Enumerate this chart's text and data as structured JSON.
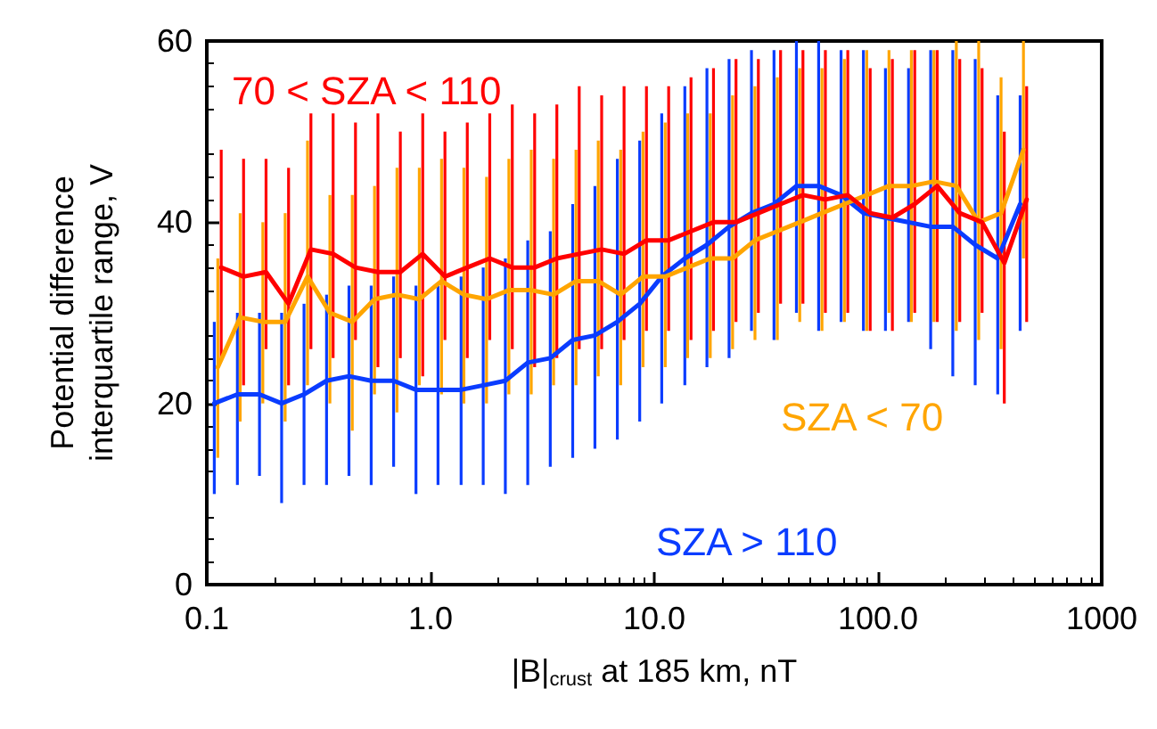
{
  "chart_data": {
    "type": "line",
    "xlabel": "|B|$_{crust}$ at 185 km, nT",
    "ylabel": "Potential difference\ninterquartile range, V",
    "log": "x",
    "xlim": [
      0.1,
      1000
    ],
    "xticks": [
      0.1,
      {
        "value": 1,
        "label": "1.0"
      },
      {
        "value": 10,
        "label": "10.0"
      },
      {
        "value": 100,
        "label": "100.0"
      },
      1000
    ],
    "ylim": [
      0,
      60
    ],
    "yticks": [
      0,
      20,
      40,
      60
    ],
    "grid": false,
    "legend": false,
    "marker": "none",
    "line_style": "solid",
    "series": [
      {
        "name": "SZA > 110",
        "color": "#0a3cff",
        "x": [
          0.108,
          0.137,
          0.172,
          0.216,
          0.272,
          0.343,
          0.432,
          0.543,
          0.684,
          0.861,
          1.08,
          1.37,
          1.72,
          2.16,
          2.72,
          3.43,
          4.32,
          5.43,
          6.84,
          8.61,
          10.8,
          13.7,
          17.2,
          21.6,
          27.2,
          34.3,
          43.2,
          54.3,
          68.4,
          86.1,
          108,
          137,
          172,
          216,
          272,
          343,
          432
        ],
        "values": [
          20,
          21,
          21,
          20,
          21,
          22.5,
          23,
          22.5,
          22.5,
          21.5,
          21.5,
          21.5,
          22,
          22.5,
          24.5,
          25,
          27,
          27.5,
          29,
          31,
          34,
          36,
          37.5,
          39.5,
          41,
          42,
          44,
          44,
          43,
          41,
          40.5,
          40,
          39.5,
          39.5,
          37.5,
          36,
          42
        ],
        "errors": [
          [
            10,
            29
          ],
          [
            11,
            30
          ],
          [
            12,
            30
          ],
          [
            9,
            30
          ],
          [
            11,
            31
          ],
          [
            11,
            32
          ],
          [
            12,
            33
          ],
          [
            11,
            33
          ],
          [
            13,
            34
          ],
          [
            10,
            33
          ],
          [
            11,
            33
          ],
          [
            11,
            34
          ],
          [
            11,
            35
          ],
          [
            10,
            36
          ],
          [
            11,
            38
          ],
          [
            13,
            39
          ],
          [
            14,
            42
          ],
          [
            15,
            44
          ],
          [
            16,
            47
          ],
          [
            18,
            49
          ],
          [
            20,
            52
          ],
          [
            22,
            55
          ],
          [
            24,
            57
          ],
          [
            25,
            58
          ],
          [
            28,
            59
          ],
          [
            27,
            59
          ],
          [
            30,
            60
          ],
          [
            28,
            60
          ],
          [
            29,
            59
          ],
          [
            28,
            59
          ],
          [
            28,
            57
          ],
          [
            29,
            57
          ],
          [
            26,
            59
          ],
          [
            23,
            59
          ],
          [
            22,
            58
          ],
          [
            21,
            54
          ],
          [
            28,
            54
          ]
        ]
      },
      {
        "name": "SZA < 70",
        "color": "#ffa500",
        "x": [
          0.112,
          0.141,
          0.178,
          0.224,
          0.282,
          0.355,
          0.447,
          0.562,
          0.708,
          0.891,
          1.12,
          1.41,
          1.78,
          2.24,
          2.82,
          3.55,
          4.47,
          5.62,
          7.08,
          8.91,
          11.2,
          14.1,
          17.8,
          22.4,
          28.2,
          35.5,
          44.7,
          56.2,
          70.8,
          89.1,
          112,
          141,
          178,
          224,
          282,
          355,
          447
        ],
        "values": [
          24,
          29.5,
          29,
          29,
          34,
          30,
          29,
          31.5,
          32,
          31.5,
          33.5,
          32,
          31.5,
          32.5,
          32.5,
          32,
          33.5,
          33.5,
          32,
          34,
          34,
          35,
          36,
          36,
          38,
          39,
          40,
          41,
          42,
          43,
          44,
          44,
          44.5,
          44,
          40,
          41,
          48
        ],
        "errors": [
          [
            14,
            36
          ],
          [
            18,
            41
          ],
          [
            20,
            40
          ],
          [
            18,
            41
          ],
          [
            22,
            49
          ],
          [
            20,
            43
          ],
          [
            17,
            43
          ],
          [
            21,
            44
          ],
          [
            19,
            46
          ],
          [
            22,
            46
          ],
          [
            21,
            47
          ],
          [
            20,
            46
          ],
          [
            20,
            45
          ],
          [
            21,
            47
          ],
          [
            21,
            48
          ],
          [
            22,
            47
          ],
          [
            22,
            48
          ],
          [
            23,
            49
          ],
          [
            22,
            48
          ],
          [
            24,
            50
          ],
          [
            24,
            51
          ],
          [
            25,
            52
          ],
          [
            25,
            52
          ],
          [
            26,
            54
          ],
          [
            27,
            55
          ],
          [
            27,
            56
          ],
          [
            29,
            57
          ],
          [
            28,
            57
          ],
          [
            29,
            58
          ],
          [
            28,
            59
          ],
          [
            30,
            59
          ],
          [
            29,
            59
          ],
          [
            29,
            59
          ],
          [
            28,
            60
          ],
          [
            27,
            60
          ],
          [
            26,
            56
          ],
          [
            36,
            60
          ]
        ]
      },
      {
        "name": "70 < SZA < 110",
        "color": "#ff0000",
        "x": [
          0.116,
          0.146,
          0.184,
          0.232,
          0.292,
          0.367,
          0.462,
          0.582,
          0.733,
          0.923,
          1.16,
          1.46,
          1.84,
          2.32,
          2.92,
          3.67,
          4.62,
          5.82,
          7.33,
          9.23,
          11.6,
          14.6,
          18.4,
          23.2,
          29.2,
          36.7,
          46.2,
          58.2,
          73.3,
          92.3,
          116,
          146,
          184,
          232,
          292,
          367,
          462
        ],
        "values": [
          35,
          34,
          34.5,
          31,
          37,
          36.5,
          35,
          34.5,
          34.5,
          36.5,
          34,
          35,
          36,
          35,
          35,
          36,
          36.5,
          37,
          36.5,
          38,
          38,
          39,
          40,
          40,
          41,
          42,
          43,
          42.5,
          43,
          41,
          40.5,
          42,
          44,
          41,
          40,
          35.5,
          42.5
        ],
        "errors": [
          [
            25,
            48
          ],
          [
            22,
            47
          ],
          [
            26,
            47
          ],
          [
            22,
            46
          ],
          [
            26,
            52
          ],
          [
            25,
            52
          ],
          [
            27,
            51
          ],
          [
            24,
            52
          ],
          [
            25,
            50
          ],
          [
            23,
            52
          ],
          [
            27,
            50
          ],
          [
            25,
            51
          ],
          [
            27,
            52
          ],
          [
            26,
            53
          ],
          [
            24,
            52
          ],
          [
            25,
            53
          ],
          [
            26,
            55
          ],
          [
            26,
            54
          ],
          [
            27,
            55
          ],
          [
            28,
            55
          ],
          [
            28,
            55
          ],
          [
            27,
            56
          ],
          [
            28,
            57
          ],
          [
            29,
            58
          ],
          [
            30,
            58
          ],
          [
            31,
            59
          ],
          [
            31,
            59
          ],
          [
            30,
            59
          ],
          [
            30,
            59
          ],
          [
            28,
            57
          ],
          [
            28,
            58
          ],
          [
            30,
            59
          ],
          [
            29,
            59
          ],
          [
            29,
            58
          ],
          [
            30,
            57
          ],
          [
            20,
            50
          ],
          [
            29,
            55
          ]
        ]
      }
    ]
  }
}
